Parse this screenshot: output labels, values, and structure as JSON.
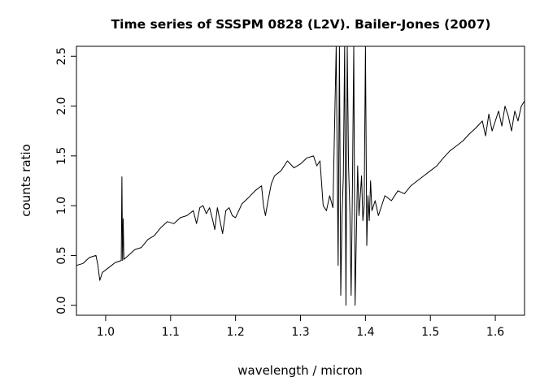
{
  "chart_data": {
    "type": "line",
    "title": "Time series of SSSPM 0828 (L2V). Bailer-Jones (2007)",
    "xlabel": "wavelength / micron",
    "ylabel": "counts ratio",
    "xlim": [
      0.955,
      1.645
    ],
    "ylim": [
      -0.1,
      2.6
    ],
    "xticks": [
      1.0,
      1.1,
      1.2,
      1.3,
      1.4,
      1.5,
      1.6
    ],
    "xtick_labels": [
      "1.0",
      "1.1",
      "1.2",
      "1.3",
      "1.4",
      "1.5",
      "1.6"
    ],
    "yticks": [
      0.0,
      0.5,
      1.0,
      1.5,
      2.0,
      2.5
    ],
    "ytick_labels": [
      "0.0",
      "0.5",
      "1.0",
      "1.5",
      "2.0",
      "2.5"
    ],
    "grid": false,
    "series": [
      {
        "x": [
          0.955,
          0.965,
          0.975,
          0.985,
          0.988,
          0.991,
          0.995,
          1.005,
          1.015,
          1.024,
          1.025,
          1.026,
          1.027,
          1.028,
          1.035,
          1.045,
          1.055,
          1.065,
          1.075,
          1.085,
          1.095,
          1.105,
          1.115,
          1.125,
          1.135,
          1.14,
          1.145,
          1.15,
          1.155,
          1.16,
          1.165,
          1.168,
          1.172,
          1.176,
          1.18,
          1.185,
          1.19,
          1.195,
          1.2,
          1.21,
          1.22,
          1.23,
          1.24,
          1.243,
          1.246,
          1.25,
          1.255,
          1.26,
          1.27,
          1.28,
          1.29,
          1.3,
          1.31,
          1.32,
          1.325,
          1.33,
          1.335,
          1.34,
          1.345,
          1.35,
          1.355,
          1.358,
          1.36,
          1.362,
          1.364,
          1.366,
          1.368,
          1.37,
          1.372,
          1.374,
          1.376,
          1.378,
          1.38,
          1.382,
          1.384,
          1.386,
          1.388,
          1.39,
          1.392,
          1.394,
          1.396,
          1.398,
          1.4,
          1.402,
          1.404,
          1.406,
          1.408,
          1.41,
          1.415,
          1.42,
          1.425,
          1.43,
          1.44,
          1.45,
          1.46,
          1.47,
          1.48,
          1.49,
          1.5,
          1.51,
          1.52,
          1.53,
          1.54,
          1.55,
          1.56,
          1.57,
          1.58,
          1.585,
          1.59,
          1.595,
          1.6,
          1.605,
          1.61,
          1.615,
          1.62,
          1.625,
          1.63,
          1.635,
          1.64,
          1.645
        ],
        "y": [
          0.4,
          0.42,
          0.48,
          0.5,
          0.4,
          0.25,
          0.33,
          0.38,
          0.43,
          0.45,
          1.29,
          0.45,
          0.87,
          0.46,
          0.5,
          0.56,
          0.58,
          0.66,
          0.7,
          0.78,
          0.84,
          0.82,
          0.88,
          0.9,
          0.95,
          0.82,
          0.98,
          1.0,
          0.92,
          0.98,
          0.85,
          0.76,
          0.98,
          0.85,
          0.72,
          0.95,
          0.98,
          0.9,
          0.88,
          1.02,
          1.08,
          1.15,
          1.2,
          1.0,
          0.9,
          1.05,
          1.22,
          1.3,
          1.35,
          1.45,
          1.38,
          1.42,
          1.48,
          1.5,
          1.4,
          1.45,
          1.0,
          0.95,
          1.1,
          0.98,
          2.6,
          0.4,
          2.6,
          0.1,
          0.9,
          1.3,
          2.6,
          0.0,
          2.6,
          1.4,
          0.95,
          0.1,
          1.2,
          2.6,
          0.0,
          0.7,
          1.4,
          0.9,
          1.1,
          1.3,
          0.85,
          1.0,
          2.6,
          0.6,
          1.1,
          0.85,
          1.25,
          0.95,
          1.05,
          0.9,
          1.0,
          1.1,
          1.05,
          1.15,
          1.12,
          1.2,
          1.25,
          1.3,
          1.35,
          1.4,
          1.48,
          1.55,
          1.6,
          1.65,
          1.72,
          1.78,
          1.85,
          1.7,
          1.92,
          1.75,
          1.85,
          1.95,
          1.8,
          2.0,
          1.9,
          1.75,
          1.95,
          1.85,
          2.0,
          2.05
        ]
      }
    ]
  }
}
